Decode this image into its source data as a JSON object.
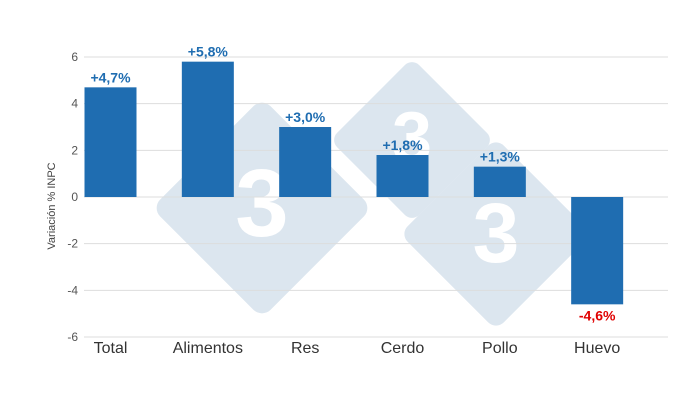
{
  "chart_data": {
    "type": "bar",
    "title": "",
    "xlabel": "",
    "ylabel": "Variación % INPC",
    "categories": [
      "Total",
      "Alimentos",
      "Res",
      "Cerdo",
      "Pollo",
      "Huevo"
    ],
    "values": [
      4.7,
      5.8,
      3.0,
      1.8,
      1.3,
      -4.6
    ],
    "data_labels": [
      "+4,7%",
      "+5,8%",
      "+3,0%",
      "+1,8%",
      "+1,3%",
      "-4,6%"
    ],
    "ylim": [
      -6,
      6
    ],
    "yticks": [
      -6,
      -4,
      -2,
      0,
      2,
      4,
      6
    ],
    "ytick_labels": [
      "-6",
      "-4",
      "-2",
      "0",
      "2",
      "4",
      "6"
    ],
    "grid": true,
    "legend": "none",
    "colors": {
      "bar": "#1f6db1",
      "positive_label": "#1f6db1",
      "negative_label": "#e00000",
      "grid": "#dddddd",
      "watermark": "#dce6ef"
    }
  },
  "watermark": {
    "text": "333",
    "description_icon": "333-logo-watermark"
  }
}
